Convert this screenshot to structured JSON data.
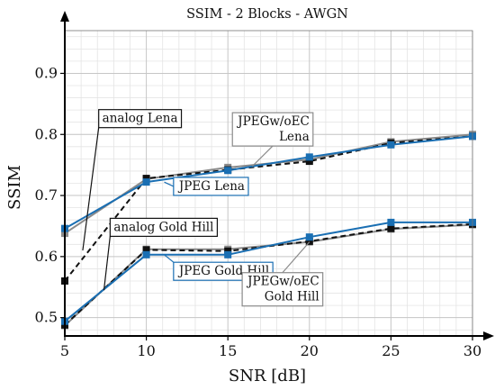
{
  "chart_data": {
    "type": "line",
    "title": "SSIM - 2 Blocks - AWGN",
    "xlabel": "SNR [dB]",
    "ylabel": "SSIM",
    "xlim": [
      5,
      30
    ],
    "ylim": [
      0.47,
      0.97
    ],
    "xticks": [
      5,
      10,
      15,
      20,
      25,
      30
    ],
    "yticks": [
      0.5,
      0.6,
      0.7,
      0.8,
      0.9
    ],
    "grid": true,
    "series": [
      {
        "name": "JPEGw/oEC Lena",
        "color": "#8a8a8a",
        "style": "solid",
        "marker": "square",
        "x": [
          5,
          10,
          15,
          20,
          25,
          30
        ],
        "y": [
          0.638,
          0.727,
          0.746,
          0.759,
          0.788,
          0.8
        ]
      },
      {
        "name": "analog Lena",
        "color": "#111111",
        "style": "dashed",
        "marker": "square",
        "x": [
          5,
          10,
          15,
          20,
          25,
          30
        ],
        "y": [
          0.56,
          0.728,
          0.742,
          0.756,
          0.786,
          0.797
        ]
      },
      {
        "name": "JPEG Lena",
        "color": "#1a6fb3",
        "style": "solid",
        "marker": "square",
        "x": [
          5,
          10,
          15,
          20,
          25,
          30
        ],
        "y": [
          0.646,
          0.722,
          0.741,
          0.763,
          0.783,
          0.797
        ]
      },
      {
        "name": "JPEGw/oEC Gold Hill",
        "color": "#8a8a8a",
        "style": "solid",
        "marker": "square",
        "x": [
          5,
          10,
          15,
          20,
          25,
          30
        ],
        "y": [
          0.487,
          0.612,
          0.612,
          0.624,
          0.645,
          0.652
        ]
      },
      {
        "name": "analog Gold Hill",
        "color": "#111111",
        "style": "dashed",
        "marker": "square",
        "x": [
          5,
          10,
          15,
          20,
          25,
          30
        ],
        "y": [
          0.488,
          0.611,
          0.609,
          0.625,
          0.646,
          0.653
        ]
      },
      {
        "name": "JPEG Gold Hill",
        "color": "#1a6fb3",
        "style": "solid",
        "marker": "square",
        "x": [
          5,
          10,
          15,
          20,
          25,
          30
        ],
        "y": [
          0.494,
          0.603,
          0.603,
          0.632,
          0.656,
          0.656
        ]
      }
    ],
    "annotations": [
      {
        "lines": [
          "analog Lena"
        ],
        "color": "#111111",
        "align": "start",
        "box_at": [
          7.3,
          0.82
        ],
        "arrow_to": [
          6.1,
          0.61
        ]
      },
      {
        "lines": [
          "JPEG Lena"
        ],
        "color": "#1a6fb3",
        "align": "start",
        "box_at": [
          12.0,
          0.709
        ],
        "arrow_to": [
          11.1,
          0.722
        ]
      },
      {
        "lines": [
          "analog Gold Hill"
        ],
        "color": "#111111",
        "align": "start",
        "box_at": [
          8.0,
          0.642
        ],
        "arrow_to": [
          7.4,
          0.545
        ]
      },
      {
        "lines": [
          "JPEG Gold Hill"
        ],
        "color": "#1a6fb3",
        "align": "start",
        "box_at": [
          12.0,
          0.57
        ],
        "arrow_to": [
          11.1,
          0.603
        ]
      },
      {
        "lines": [
          "JPEGw/oEC",
          "Lena"
        ],
        "color": "#8a8a8a",
        "align": "end",
        "box_at": [
          20.0,
          0.815
        ],
        "arrow_to": [
          16.5,
          0.748
        ]
      },
      {
        "lines": [
          "JPEGw/oEC",
          "Gold Hill"
        ],
        "color": "#8a8a8a",
        "align": "end",
        "box_at": [
          20.6,
          0.553
        ],
        "arrow_to": [
          20.0,
          0.624
        ]
      }
    ]
  }
}
